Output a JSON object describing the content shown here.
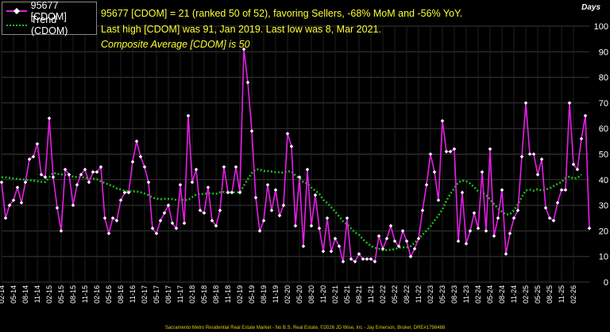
{
  "chart_data": {
    "type": "line",
    "title": "",
    "unit_label": "Days",
    "info_lines": [
      "95677 [CDOM] = 21 (ranked 50 of 52), favoring Sellers, -68% MoM and -56% YoY.",
      "Last high [CDOM] was 91, Jan 2019. Last low was 8, Mar 2021.",
      "Composite Average [CDOM] is 50"
    ],
    "ylim": [
      0,
      100
    ],
    "y_ticks": [
      0,
      10,
      20,
      30,
      40,
      50,
      60,
      70,
      80,
      90,
      100
    ],
    "x_tick_labels": [
      "02-14",
      "05-14",
      "08-14",
      "11-14",
      "02-15",
      "05-15",
      "08-15",
      "11-15",
      "02-16",
      "05-16",
      "08-16",
      "11-16",
      "02-17",
      "05-17",
      "08-17",
      "11-17",
      "02-18",
      "05-18",
      "08-18",
      "11-18",
      "02-19",
      "05-19",
      "08-19",
      "11-19",
      "02-20",
      "05-20",
      "08-20",
      "11-20",
      "02-21",
      "05-21",
      "08-21",
      "11-21",
      "02-22",
      "05-22",
      "08-22",
      "11-22",
      "02-23",
      "05-23",
      "08-23",
      "11-23",
      "02-24",
      "05-24",
      "08-24",
      "11-24",
      "02-25",
      "05-25",
      "08-25",
      "11-25",
      "02-26"
    ],
    "grid": true,
    "legend_position": "top-left",
    "colors": {
      "series": "#e61ee6",
      "marker": "#ffffff",
      "trend": "#19c119",
      "text": "#ffff33",
      "footer": "#e6c619"
    },
    "series": [
      {
        "name": "95677 [CDOM]",
        "values": [
          39,
          25,
          30,
          32,
          37,
          31,
          39,
          48,
          49,
          54,
          42,
          41,
          64,
          41,
          29,
          20,
          44,
          42,
          30,
          38,
          42,
          44,
          39,
          43,
          43,
          45,
          25,
          19,
          25,
          24,
          32,
          35,
          35,
          47,
          55,
          49,
          45,
          39,
          21,
          19,
          24,
          27,
          30,
          23,
          21,
          38,
          23,
          65,
          39,
          44,
          28,
          27,
          37,
          24,
          22,
          28,
          45,
          35,
          35,
          45,
          35,
          91,
          78,
          59,
          33,
          20,
          24,
          38,
          28,
          36,
          26,
          30,
          58,
          53,
          22,
          41,
          14,
          44,
          22,
          34,
          21,
          12,
          25,
          12,
          17,
          14,
          8,
          25,
          9,
          8,
          11,
          9,
          9,
          9,
          8,
          18,
          13,
          17,
          22,
          16,
          14,
          20,
          16,
          10,
          13,
          17,
          28,
          38,
          50,
          43,
          32,
          63,
          51,
          51,
          52,
          16,
          35,
          15,
          20,
          27,
          21,
          43,
          20,
          52,
          18,
          25,
          36,
          11,
          19,
          25,
          28,
          49,
          70,
          50,
          50,
          42,
          48,
          29,
          25,
          24,
          31,
          36,
          36,
          70,
          46,
          44,
          56,
          65,
          21
        ]
      },
      {
        "name": "Trend (CDOM)",
        "values": [
          41.0,
          40.9,
          40.7,
          40.5,
          40.3,
          40.1,
          40.0,
          39.8,
          39.6,
          39.4,
          39.2,
          39.1,
          41.0,
          42.7,
          42.3,
          42.1,
          41.9,
          41.5,
          41.2,
          41.0,
          41.1,
          40.8,
          40.6,
          40.4,
          40.2,
          39.3,
          38.7,
          38.1,
          37.5,
          36.6,
          36.2,
          35.7,
          35.5,
          35.5,
          35.4,
          35.1,
          34.6,
          33.9,
          33.0,
          32.6,
          32.4,
          32.5,
          32.5,
          32.4,
          32.1,
          32.1,
          32.1,
          32.1,
          33.2,
          34.2,
          34.4,
          34.4,
          34.7,
          34.6,
          34.5,
          35.1,
          35.2,
          35.1,
          35.1,
          35.1,
          35.1,
          37.7,
          40.2,
          42.6,
          44.1,
          44.0,
          43.4,
          43.4,
          43.2,
          42.9,
          42.9,
          42.7,
          43.2,
          43.3,
          41.6,
          40.6,
          39.0,
          38.5,
          36.9,
          35.7,
          34.5,
          32.1,
          30.9,
          29.2,
          27.5,
          25.6,
          23.7,
          22.6,
          20.9,
          19.4,
          18.5,
          16.7,
          15.3,
          14.1,
          13.4,
          13.0,
          12.4,
          12.5,
          12.6,
          12.9,
          13.4,
          13.6,
          13.6,
          14.0,
          15.3,
          17.0,
          18.5,
          20.1,
          21.8,
          24.0,
          26.0,
          28.4,
          31.8,
          34.5,
          36.6,
          38.9,
          39.7,
          39.4,
          38.5,
          37.1,
          35.5,
          35.1,
          33.9,
          32.4,
          30.5,
          28.8,
          27.4,
          26.4,
          26.5,
          28.0,
          30.3,
          33.3,
          35.8,
          36.1,
          35.7,
          36.3,
          35.8,
          36.2,
          36.6,
          37.5,
          38.4,
          39.1,
          40.6,
          41.2,
          40.5,
          40.7,
          42.0
        ]
      }
    ]
  },
  "footer_text": "Sacramento Metro Residential Real Estate Market - No B.S. Real Estate, ©2026 JD Wise, Inc - Jay Emerson, Broker, DRE#1798488"
}
